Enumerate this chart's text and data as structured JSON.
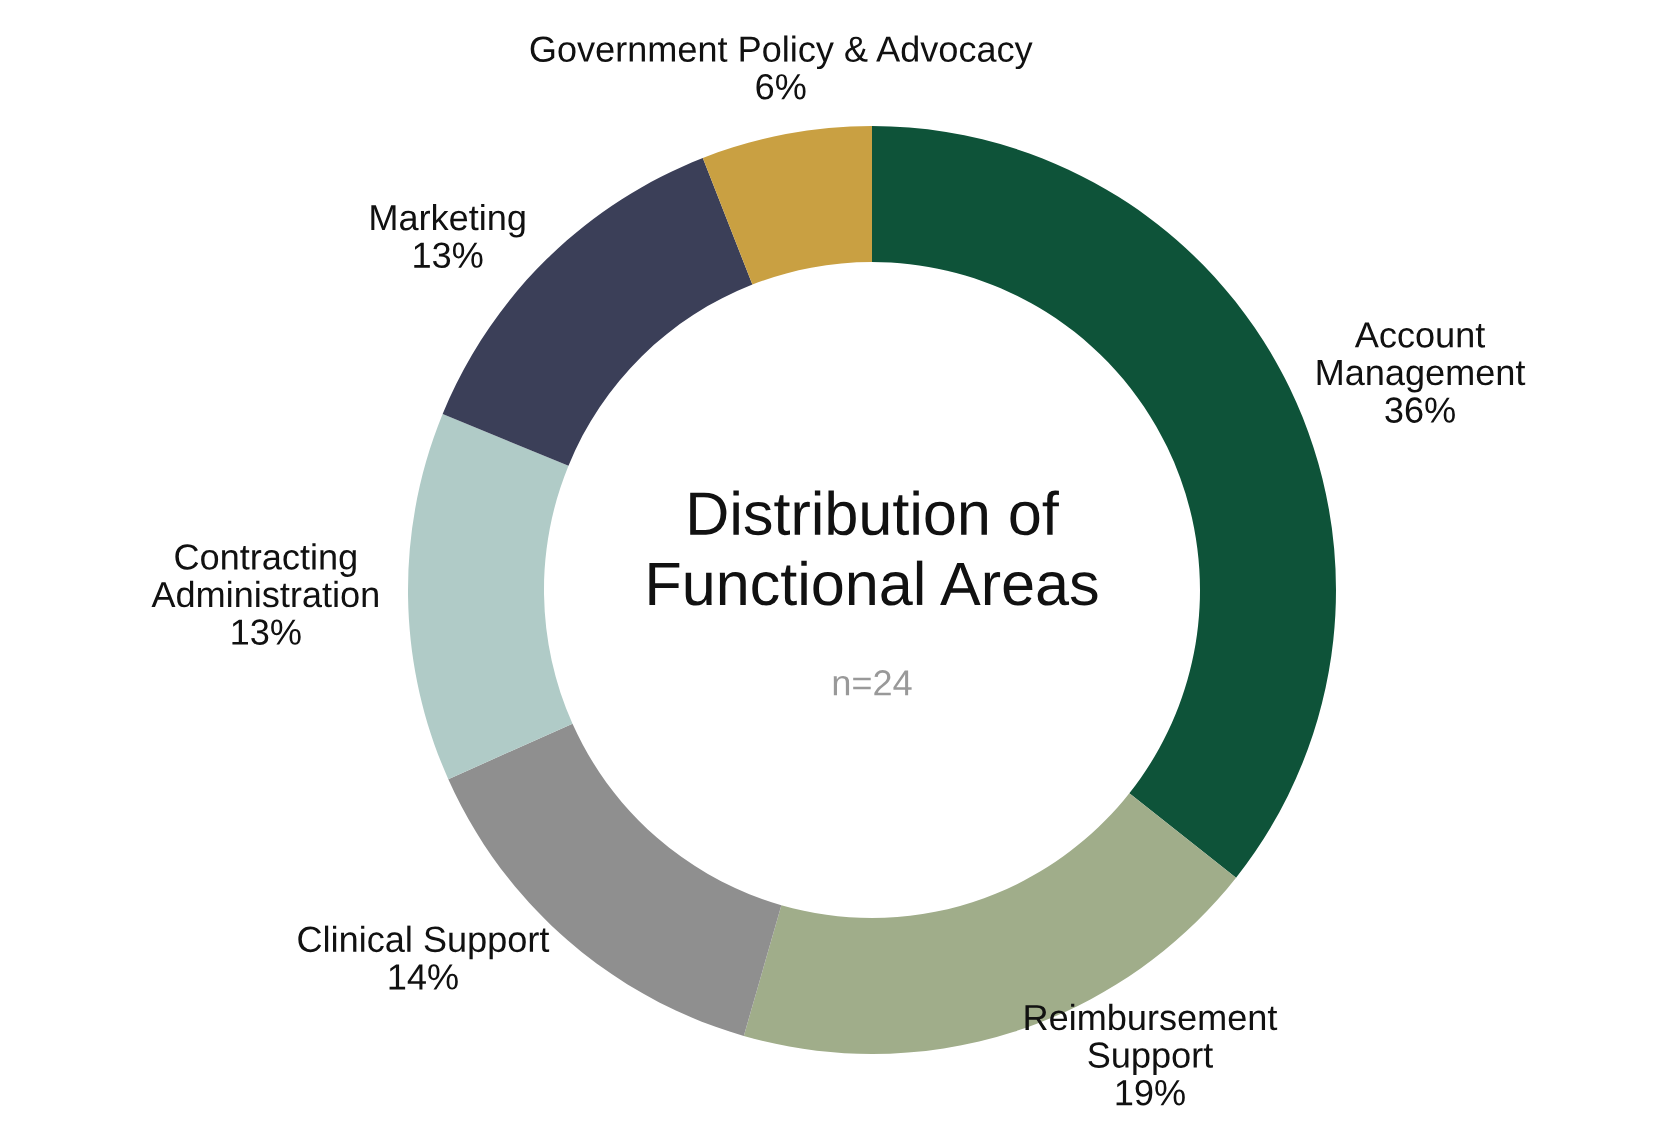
{
  "chart_data": {
    "type": "donut",
    "title": "Distribution of\nFunctional Areas",
    "subtitle": "n=24",
    "categories": [
      "Account\nManagement",
      "Reimbursement\nSupport",
      "Clinical Support",
      "Contracting\nAdministration",
      "Marketing",
      "Government Policy & Advocacy"
    ],
    "values": [
      36,
      19,
      14,
      13,
      13,
      6
    ],
    "value_labels": [
      "36%",
      "19%",
      "14%",
      "13%",
      "13%",
      "6%"
    ],
    "colors": [
      "#0e5339",
      "#a0ad8a",
      "#8f8f8f",
      "#b0cbc7",
      "#3b3f58",
      "#c9a042"
    ],
    "legend": false
  }
}
